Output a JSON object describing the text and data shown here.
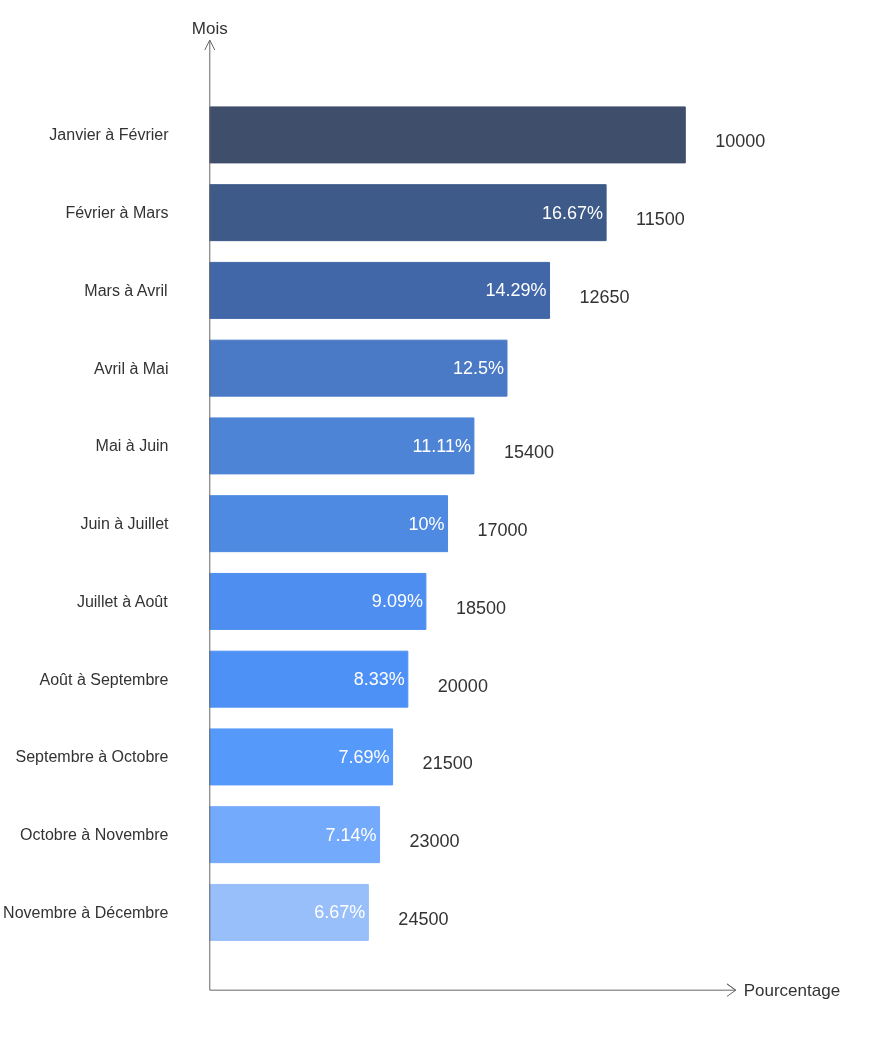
{
  "chart_data": {
    "type": "bar",
    "orientation": "horizontal",
    "xlabel": "Pourcentage",
    "ylabel": "Mois",
    "tick_labels": "y",
    "grid": false,
    "categories": [
      "Janvier à Février",
      "Février à Mars",
      "Mars à Avril",
      "Avril à Mai",
      "Mai à Juin",
      "Juin à Juillet",
      "Juillet à Août",
      "Août à Septembre",
      "Septembre à Octobre",
      "Octobre à Novembre",
      "Novembre à Décembre"
    ],
    "values": [
      20,
      16.67,
      14.29,
      12.5,
      11.11,
      10,
      9.09,
      8.33,
      7.69,
      7.14,
      6.67
    ],
    "colors": [
      "#3f4e6b",
      "#3e5a88",
      "#4267a8",
      "#4a7ac6",
      "#4d84d6",
      "#4e8ae2",
      "#4d8ef0",
      "#4e91f6",
      "#5599fb",
      "#74aafb",
      "#98bffa"
    ],
    "value_labels": [
      null,
      "16.67%",
      "14.29%",
      "12.5%",
      "11.11%",
      "10%",
      "9.09%",
      "8.33%",
      "7.69%",
      "7.14%",
      "6.67%"
    ],
    "annotations": [
      {
        "text": "10000",
        "x": 20,
        "y": "Janvier à Février"
      },
      {
        "text": "11500",
        "x": 16.67,
        "y": "Février à Mars"
      },
      {
        "text": "12650",
        "x": 14.29,
        "y": "Mars à Avril"
      },
      {
        "text": "15400",
        "x": 11.11,
        "y": "Mai à Juin"
      },
      {
        "text": "17000",
        "x": 10,
        "y": "Juin à Juillet"
      },
      {
        "text": "18500",
        "x": 9.09,
        "y": "Juillet à Août"
      },
      {
        "text": "20000",
        "x": 8.33,
        "y": "Août à Septembre"
      },
      {
        "text": "21500",
        "x": 7.69,
        "y": "Septembre à Octobre"
      },
      {
        "text": "23000",
        "x": 7.14,
        "y": "Octobre à Novembre"
      },
      {
        "text": "24500",
        "x": 6.67,
        "y": "Novembre à Décembre"
      }
    ]
  }
}
